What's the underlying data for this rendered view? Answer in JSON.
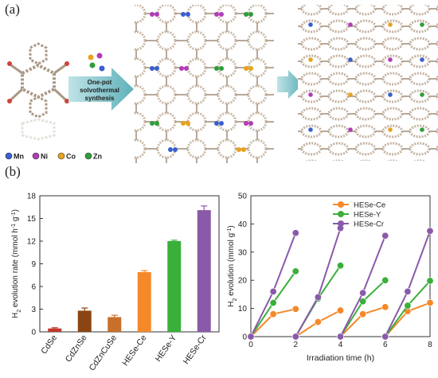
{
  "labels": {
    "a": "(a)",
    "b": "(b)"
  },
  "scheme": {
    "arrow_text": [
      "One-pot",
      "solvothermal",
      "synthesis"
    ],
    "legend": [
      {
        "name": "Mn",
        "color": "#3a5fcf"
      },
      {
        "name": "Ni",
        "color": "#b03cb8"
      },
      {
        "name": "Co",
        "color": "#e8a21c"
      },
      {
        "name": "Zn",
        "color": "#2e9e3a"
      }
    ]
  },
  "chart_data": [
    {
      "type": "bar",
      "categories": [
        "CdSe",
        "CdZnSe",
        "CdZnCuSe",
        "HESe-Ce",
        "HESe-Y",
        "HESe-Cr"
      ],
      "values": [
        0.45,
        2.8,
        1.95,
        7.9,
        12.0,
        16.1
      ],
      "errors": [
        0.1,
        0.35,
        0.25,
        0.2,
        0.12,
        0.55
      ],
      "colors": [
        "#c0392b",
        "#8b4513",
        "#c8702a",
        "#f5892a",
        "#3aaf3a",
        "#8a5aaa"
      ],
      "ylabel_main": "H",
      "ylabel_sub": "2",
      "ylabel_rest": " evolution rate (mmol h",
      "ylabel_sup1": "-1",
      "ylabel_mid": " g",
      "ylabel_sup2": "-1",
      "ylabel_end": ")",
      "ylim": [
        0,
        18
      ],
      "yticks": [
        "0",
        "3",
        "6",
        "9",
        "12",
        "15",
        "18"
      ]
    },
    {
      "type": "line",
      "xlabel": "Irradiation time (h)",
      "ylabel_main": "H",
      "ylabel_sub": "2",
      "ylabel_rest": " evolution (mmol g",
      "ylabel_sup": "-1",
      "ylabel_end": ")",
      "xlim": [
        0,
        8
      ],
      "ylim": [
        0,
        50
      ],
      "xticks": [
        "0",
        "2",
        "4",
        "6",
        "8"
      ],
      "yticks": [
        "0",
        "10",
        "20",
        "30",
        "40",
        "50"
      ],
      "legend_position": "top-right",
      "series": [
        {
          "name": "HESe-Ce",
          "color": "#f5892a",
          "segments": [
            [
              [
                0,
                0
              ],
              [
                1,
                8
              ],
              [
                2,
                9.8
              ]
            ],
            [
              [
                2,
                0
              ],
              [
                3,
                5.2
              ],
              [
                4,
                9.3
              ]
            ],
            [
              [
                4,
                0
              ],
              [
                5,
                8
              ],
              [
                6,
                10.5
              ]
            ],
            [
              [
                6,
                0
              ],
              [
                7,
                9
              ],
              [
                8,
                12
              ]
            ]
          ]
        },
        {
          "name": "HESe-Y",
          "color": "#3aaf3a",
          "segments": [
            [
              [
                0,
                0
              ],
              [
                1,
                12
              ],
              [
                2,
                23.2
              ]
            ],
            [
              [
                2,
                0
              ],
              [
                3,
                13.5
              ],
              [
                4,
                25.2
              ]
            ],
            [
              [
                4,
                0
              ],
              [
                5,
                12.5
              ],
              [
                6,
                20
              ]
            ],
            [
              [
                6,
                0
              ],
              [
                7,
                11
              ],
              [
                8,
                19.8
              ]
            ]
          ]
        },
        {
          "name": "HESe-Cr",
          "color": "#8a5aaa",
          "segments": [
            [
              [
                0,
                0
              ],
              [
                1,
                16
              ],
              [
                2,
                36.8
              ]
            ],
            [
              [
                2,
                0
              ],
              [
                3,
                14
              ],
              [
                4,
                38.5
              ]
            ],
            [
              [
                4,
                0
              ],
              [
                5,
                15.5
              ],
              [
                6,
                35.8
              ]
            ],
            [
              [
                6,
                0
              ],
              [
                7,
                16
              ],
              [
                8,
                37.5
              ]
            ]
          ]
        }
      ]
    }
  ]
}
